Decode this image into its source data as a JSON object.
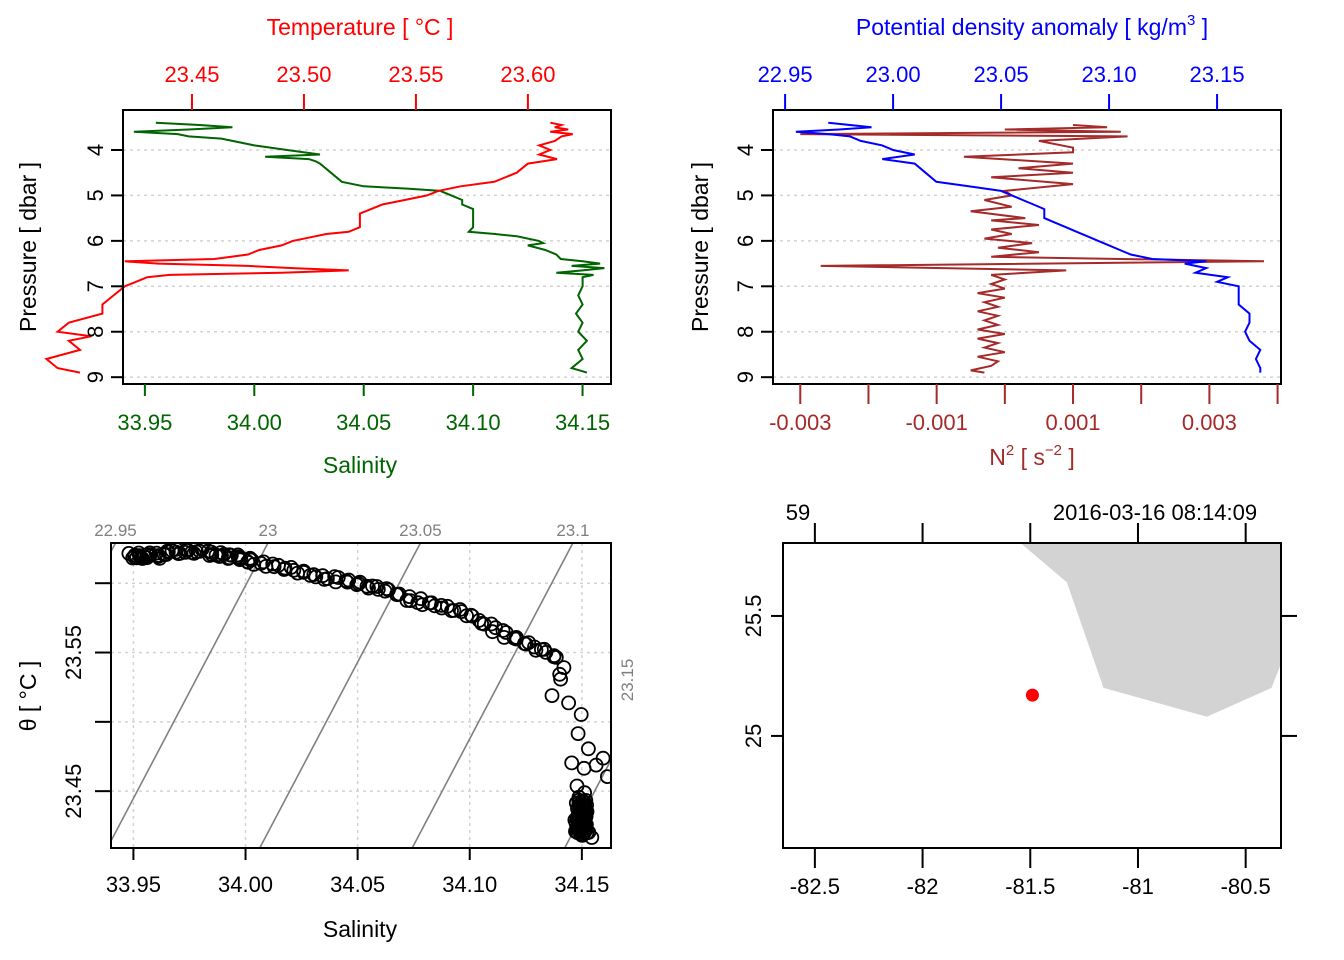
{
  "colors": {
    "salinity": "#006400",
    "temperature": "#ff0000",
    "density": "#0000ff",
    "n2": "#a52a2a",
    "isopycnal": "#808080",
    "grid": "#d3d3d3",
    "land": "#d3d3d3",
    "station": "#ff0000",
    "frame": "#000000"
  },
  "chart_data": [
    {
      "id": "salinity-temperature-profile",
      "type": "line",
      "title": "",
      "xlabel": "Salinity",
      "x2label": "Temperature [ °C ]",
      "ylabel": "Pressure [ dbar ]",
      "xlim": [
        33.94,
        34.163
      ],
      "x2lim": [
        23.4192,
        23.6371
      ],
      "ylim": [
        9.15,
        3.12
      ],
      "xticks": [
        "33.95",
        "34.00",
        "34.05",
        "34.10",
        "34.15"
      ],
      "x2ticks": [
        "23.45",
        "23.50",
        "23.55",
        "23.60"
      ],
      "yticks": [
        "4",
        "5",
        "6",
        "7",
        "8",
        "9"
      ],
      "grid": "horizontal dotted at pressure ticks",
      "series": [
        {
          "name": "Salinity",
          "axis": "bottom",
          "pressure": [
            3.4,
            3.45,
            3.5,
            3.55,
            3.6,
            3.65,
            3.7,
            3.75,
            3.8,
            3.9,
            4.0,
            4.1,
            4.15,
            4.2,
            4.25,
            4.3,
            4.5,
            4.7,
            4.8,
            4.85,
            4.9,
            5.0,
            5.1,
            5.2,
            5.3,
            5.4,
            5.5,
            5.6,
            5.7,
            5.8,
            5.85,
            5.9,
            6.0,
            6.05,
            6.1,
            6.2,
            6.3,
            6.4,
            6.45,
            6.5,
            6.55,
            6.6,
            6.65,
            6.7,
            6.75,
            6.8,
            6.85,
            6.9,
            7.0,
            7.2,
            7.4,
            7.6,
            7.8,
            8.0,
            8.2,
            8.4,
            8.6,
            8.8,
            8.9
          ],
          "values": [
            33.955,
            33.975,
            33.99,
            33.97,
            33.945,
            33.965,
            33.97,
            33.985,
            33.99,
            34.0,
            34.015,
            34.03,
            34.005,
            34.025,
            34.028,
            34.03,
            34.035,
            34.04,
            34.05,
            34.07,
            34.085,
            34.09,
            34.095,
            34.095,
            34.1,
            34.1,
            34.1,
            34.1,
            34.1,
            34.098,
            34.11,
            34.12,
            34.13,
            34.132,
            34.125,
            34.133,
            34.138,
            34.14,
            34.15,
            34.158,
            34.145,
            34.16,
            34.15,
            34.138,
            34.155,
            34.15,
            34.15,
            34.15,
            34.15,
            34.148,
            34.15,
            34.147,
            34.15,
            34.148,
            34.152,
            34.148,
            34.15,
            34.145,
            34.152
          ]
        },
        {
          "name": "Temperature",
          "axis": "top",
          "pressure": [
            3.4,
            3.45,
            3.5,
            3.55,
            3.6,
            3.65,
            3.7,
            3.8,
            3.9,
            4.0,
            4.1,
            4.2,
            4.3,
            4.5,
            4.7,
            4.8,
            4.9,
            5.0,
            5.1,
            5.2,
            5.3,
            5.4,
            5.5,
            5.6,
            5.7,
            5.8,
            5.85,
            5.9,
            6.0,
            6.1,
            6.2,
            6.3,
            6.4,
            6.45,
            6.5,
            6.55,
            6.6,
            6.65,
            6.7,
            6.75,
            6.8,
            6.9,
            7.0,
            7.2,
            7.4,
            7.6,
            7.8,
            8.0,
            8.1,
            8.2,
            8.4,
            8.6,
            8.8,
            8.9
          ],
          "values": [
            23.61,
            23.615,
            23.612,
            23.618,
            23.61,
            23.62,
            23.615,
            23.612,
            23.605,
            23.61,
            23.605,
            23.613,
            23.6,
            23.595,
            23.585,
            23.57,
            23.56,
            23.555,
            23.545,
            23.535,
            23.53,
            23.525,
            23.525,
            23.525,
            23.525,
            23.52,
            23.51,
            23.505,
            23.495,
            23.49,
            23.48,
            23.475,
            23.46,
            23.42,
            23.435,
            23.475,
            23.495,
            23.52,
            23.49,
            23.44,
            23.43,
            23.425,
            23.42,
            23.415,
            23.41,
            23.41,
            23.395,
            23.39,
            23.405,
            23.395,
            23.4,
            23.385,
            23.39,
            23.4
          ]
        }
      ]
    },
    {
      "id": "density-n2-profile",
      "type": "line",
      "title": "",
      "xlabel": "N² [ s⁻² ]",
      "x2label": "Potential density anomaly [ kg/m³ ]",
      "ylabel": "Pressure [ dbar ]",
      "xlim": [
        -0.0034,
        0.00405
      ],
      "x2lim": [
        22.9444,
        23.1796
      ],
      "ylim": [
        9.15,
        3.12
      ],
      "xticks": [
        "-0.003",
        "-0.001",
        "0.001",
        "0.003"
      ],
      "xtick_positions": [
        -0.003,
        -0.002,
        -0.001,
        0.0,
        0.001,
        0.002,
        0.003,
        0.004
      ],
      "x2ticks": [
        "22.95",
        "23.00",
        "23.05",
        "23.10",
        "23.15"
      ],
      "yticks": [
        "4",
        "5",
        "6",
        "7",
        "8",
        "9"
      ],
      "grid": "horizontal dotted at pressure ticks",
      "series": [
        {
          "name": "Potential density anomaly",
          "axis": "top",
          "pressure": [
            3.4,
            3.45,
            3.5,
            3.55,
            3.6,
            3.65,
            3.7,
            3.8,
            3.9,
            4.0,
            4.1,
            4.2,
            4.3,
            4.5,
            4.7,
            4.8,
            4.9,
            5.0,
            5.1,
            5.2,
            5.3,
            5.4,
            5.5,
            5.6,
            5.7,
            5.8,
            5.9,
            6.0,
            6.1,
            6.2,
            6.3,
            6.4,
            6.45,
            6.5,
            6.6,
            6.7,
            6.8,
            6.9,
            7.0,
            7.2,
            7.4,
            7.6,
            7.8,
            8.0,
            8.2,
            8.4,
            8.6,
            8.8,
            8.9
          ],
          "values": [
            22.97,
            22.98,
            22.99,
            22.975,
            22.955,
            22.97,
            22.98,
            22.985,
            22.995,
            23.0,
            23.01,
            22.995,
            23.01,
            23.015,
            23.02,
            23.035,
            23.05,
            23.055,
            23.06,
            23.065,
            23.07,
            23.07,
            23.07,
            23.075,
            23.08,
            23.085,
            23.09,
            23.095,
            23.1,
            23.105,
            23.11,
            23.12,
            23.145,
            23.135,
            23.145,
            23.14,
            23.155,
            23.15,
            23.16,
            23.16,
            23.16,
            23.165,
            23.165,
            23.163,
            23.165,
            23.17,
            23.168,
            23.17,
            23.17
          ]
        },
        {
          "name": "N2",
          "axis": "bottom",
          "pressure": [
            3.45,
            3.5,
            3.55,
            3.6,
            3.65,
            3.7,
            3.8,
            3.95,
            4.05,
            4.15,
            4.3,
            4.4,
            4.5,
            4.6,
            4.75,
            4.9,
            5.0,
            5.1,
            5.25,
            5.35,
            5.5,
            5.55,
            5.65,
            5.75,
            5.85,
            5.95,
            6.05,
            6.15,
            6.25,
            6.35,
            6.45,
            6.55,
            6.65,
            6.75,
            6.85,
            6.95,
            7.05,
            7.15,
            7.25,
            7.35,
            7.45,
            7.55,
            7.65,
            7.75,
            7.85,
            7.95,
            8.05,
            8.15,
            8.25,
            8.35,
            8.45,
            8.55,
            8.65,
            8.75,
            8.85,
            8.9
          ],
          "values": [
            0.001,
            0.0015,
            0.0,
            0.0017,
            -0.003,
            0.0018,
            0.0005,
            0.001,
            0.001,
            -0.0006,
            0.001,
            0.0002,
            0.001,
            -0.0002,
            0.001,
            0.0,
            0.0001,
            -0.0003,
            0.0001,
            -0.0005,
            0.0003,
            -0.0002,
            0.0005,
            -0.0002,
            0.0001,
            -0.0003,
            0.0004,
            -0.0001,
            0.0005,
            -0.0002,
            0.0038,
            -0.0027,
            0.0009,
            -0.0002,
            0.0,
            -0.0002,
            0.0,
            -0.0004,
            0.0,
            -0.0003,
            -0.0001,
            -0.0004,
            -0.0001,
            -0.0003,
            -0.0001,
            -0.0004,
            0.0,
            -0.0004,
            -0.0001,
            -0.0003,
            0.0,
            -0.0004,
            -0.0001,
            -0.0002,
            -0.0005,
            -0.0003
          ]
        }
      ]
    },
    {
      "id": "ts-diagram",
      "type": "scatter",
      "title": "",
      "xlabel": "Salinity",
      "ylabel": "θ [ °C ]",
      "xlim": [
        33.94,
        34.163
      ],
      "ylim": [
        23.409,
        23.629
      ],
      "xticks": [
        "33.95",
        "34.00",
        "34.05",
        "34.10",
        "34.15"
      ],
      "yticks": [
        "23.45",
        "23.55"
      ],
      "ytick_positions": [
        23.45,
        23.5,
        23.55,
        23.6
      ],
      "grid": "dotted both axes",
      "isopycnals": {
        "labels": [
          "22.95",
          "23",
          "23.05",
          "23.1",
          "23.15"
        ],
        "values": [
          22.95,
          23.0,
          23.05,
          23.1,
          23.15
        ]
      },
      "points": {
        "salinity": [
          33.948,
          33.952,
          33.955,
          33.96,
          33.965,
          33.97,
          33.975,
          33.98,
          33.985,
          33.99,
          33.995,
          34.0,
          34.005,
          34.01,
          34.015,
          34.02,
          34.025,
          34.03,
          34.035,
          34.04,
          34.045,
          34.05,
          34.055,
          34.06,
          34.065,
          34.07,
          34.075,
          34.08,
          34.085,
          34.09,
          34.095,
          34.1,
          34.105,
          34.11,
          34.115,
          34.12,
          34.125,
          34.13,
          34.135,
          34.14,
          34.142,
          34.138,
          34.145,
          34.15,
          34.148,
          34.152,
          34.155,
          34.158,
          34.16,
          34.15,
          34.145,
          34.148,
          34.152,
          34.15,
          34.149,
          34.151,
          34.15,
          34.148,
          34.152,
          34.15,
          34.147,
          34.153,
          34.15,
          34.149,
          34.151,
          34.15
        ],
        "theta": [
          23.62,
          23.618,
          23.621,
          23.619,
          23.622,
          23.623,
          23.622,
          23.624,
          23.621,
          23.62,
          23.619,
          23.617,
          23.615,
          23.613,
          23.612,
          23.61,
          23.608,
          23.606,
          23.604,
          23.603,
          23.601,
          23.6,
          23.598,
          23.596,
          23.594,
          23.591,
          23.588,
          23.586,
          23.584,
          23.582,
          23.58,
          23.577,
          23.572,
          23.568,
          23.563,
          23.56,
          23.557,
          23.553,
          23.55,
          23.545,
          23.53,
          23.52,
          23.515,
          23.505,
          23.49,
          23.48,
          23.47,
          23.475,
          23.46,
          23.465,
          23.47,
          23.455,
          23.45,
          23.445,
          23.44,
          23.435,
          23.43,
          23.428,
          23.425,
          23.423,
          23.42,
          23.418,
          23.422,
          23.438,
          23.442,
          23.432
        ]
      }
    },
    {
      "id": "station-map",
      "type": "scatter",
      "title": "",
      "xlim": [
        -82.648,
        -80.336
      ],
      "ylim": [
        24.533,
        25.804
      ],
      "xticks": [
        "-82.5",
        "-82",
        "-81.5",
        "-81",
        "-80.5"
      ],
      "yticks": [
        "25",
        "25.5"
      ],
      "top_labels": [
        "59",
        "2016-03-16 08:14:09"
      ],
      "station": {
        "lon": -81.49,
        "lat": 25.17
      },
      "land_polygon": {
        "lon": [
          -81.54,
          -81.33,
          -81.16,
          -80.68,
          -80.38,
          -80.336,
          -80.336
        ],
        "lat": [
          25.8,
          25.64,
          25.2,
          25.08,
          25.2,
          25.3,
          25.804
        ]
      }
    }
  ]
}
